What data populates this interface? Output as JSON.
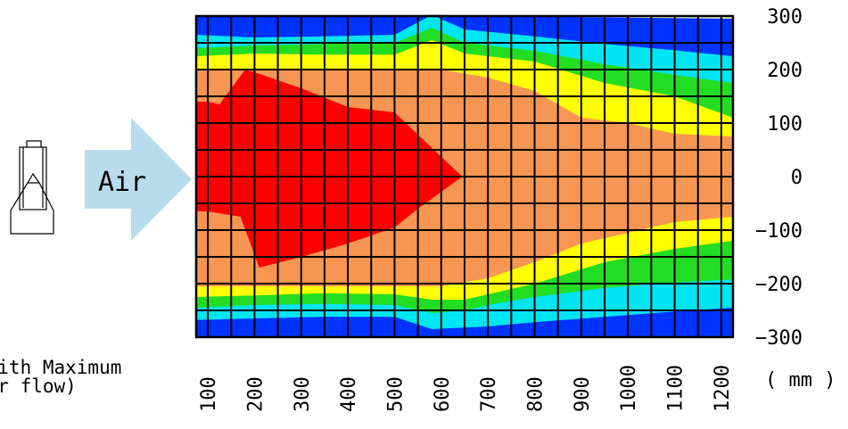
{
  "flow_label": "Air",
  "caption_lines": [
    "(with Maximum",
    "air flow)"
  ],
  "unit_label": "( mm )",
  "palette": {
    "band0": "#ff0000",
    "band1": "#f79552",
    "band2": "#ffff00",
    "band3": "#22dd22",
    "band4": "#00e5f2",
    "band5": "#0033ff",
    "background": "#f7f4c8",
    "arrow": "#b8dcec"
  },
  "chart_data": {
    "type": "heatmap",
    "description_type": "contour",
    "title": "",
    "xlabel": "",
    "ylabel": "",
    "unit": "( mm )",
    "xlim": [
      75,
      1225
    ],
    "ylim": [
      -300,
      300
    ],
    "x_ticks": [
      100,
      200,
      300,
      400,
      500,
      600,
      700,
      800,
      900,
      1000,
      1100,
      1200
    ],
    "y_ticks": [
      300,
      200,
      100,
      0,
      -100,
      -200,
      -300
    ],
    "grid": true,
    "bands": [
      {
        "name": "band5",
        "color": "#0033ff",
        "upper": [
          [
            75,
            300
          ],
          [
            500,
            300
          ],
          [
            580,
            302
          ],
          [
            760,
            300
          ],
          [
            900,
            298
          ],
          [
            1225,
            295
          ]
        ],
        "lower": [
          [
            75,
            -300
          ],
          [
            500,
            -300
          ],
          [
            600,
            -300
          ],
          [
            800,
            -300
          ],
          [
            900,
            -300
          ],
          [
            1225,
            -300
          ]
        ]
      },
      {
        "name": "band4",
        "color": "#00e5f2",
        "upper": [
          [
            75,
            265
          ],
          [
            200,
            260
          ],
          [
            350,
            262
          ],
          [
            500,
            265
          ],
          [
            580,
            302
          ],
          [
            650,
            275
          ],
          [
            800,
            262
          ],
          [
            950,
            248
          ],
          [
            1100,
            236
          ],
          [
            1225,
            225
          ]
        ],
        "lower": [
          [
            75,
            -268
          ],
          [
            200,
            -265
          ],
          [
            350,
            -262
          ],
          [
            500,
            -262
          ],
          [
            580,
            -285
          ],
          [
            650,
            -282
          ],
          [
            700,
            -280
          ],
          [
            800,
            -272
          ],
          [
            950,
            -262
          ],
          [
            1100,
            -252
          ],
          [
            1225,
            -245
          ]
        ]
      },
      {
        "name": "band3",
        "color": "#22dd22",
        "upper": [
          [
            75,
            240
          ],
          [
            200,
            245
          ],
          [
            350,
            248
          ],
          [
            500,
            250
          ],
          [
            580,
            278
          ],
          [
            650,
            250
          ],
          [
            800,
            235
          ],
          [
            950,
            210
          ],
          [
            1100,
            190
          ],
          [
            1225,
            175
          ]
        ],
        "lower": [
          [
            75,
            -245
          ],
          [
            200,
            -240
          ],
          [
            350,
            -238
          ],
          [
            500,
            -240
          ],
          [
            580,
            -255
          ],
          [
            650,
            -250
          ],
          [
            700,
            -240
          ],
          [
            800,
            -225
          ],
          [
            950,
            -208
          ],
          [
            1100,
            -198
          ],
          [
            1225,
            -192
          ]
        ]
      },
      {
        "name": "band2",
        "color": "#ffff00",
        "upper": [
          [
            75,
            225
          ],
          [
            200,
            230
          ],
          [
            350,
            228
          ],
          [
            500,
            228
          ],
          [
            580,
            255
          ],
          [
            650,
            230
          ],
          [
            800,
            215
          ],
          [
            950,
            175
          ],
          [
            1100,
            150
          ],
          [
            1225,
            110
          ]
        ],
        "lower": [
          [
            75,
            -225
          ],
          [
            200,
            -222
          ],
          [
            350,
            -218
          ],
          [
            500,
            -220
          ],
          [
            580,
            -230
          ],
          [
            650,
            -230
          ],
          [
            700,
            -220
          ],
          [
            800,
            -200
          ],
          [
            950,
            -160
          ],
          [
            1100,
            -135
          ],
          [
            1225,
            -120
          ]
        ]
      },
      {
        "name": "band1",
        "color": "#f79552",
        "upper": [
          [
            75,
            200
          ],
          [
            200,
            200
          ],
          [
            350,
            200
          ],
          [
            500,
            200
          ],
          [
            600,
            200
          ],
          [
            700,
            185
          ],
          [
            800,
            160
          ],
          [
            900,
            110
          ],
          [
            1000,
            100
          ],
          [
            1100,
            80
          ],
          [
            1225,
            75
          ]
        ],
        "lower": [
          [
            75,
            -205
          ],
          [
            200,
            -205
          ],
          [
            350,
            -205
          ],
          [
            500,
            -205
          ],
          [
            600,
            -205
          ],
          [
            700,
            -190
          ],
          [
            800,
            -160
          ],
          [
            900,
            -125
          ],
          [
            1000,
            -105
          ],
          [
            1100,
            -85
          ],
          [
            1225,
            -75
          ]
        ]
      },
      {
        "name": "band0",
        "color": "#ff0000",
        "upper": [
          [
            75,
            140
          ],
          [
            100,
            140
          ],
          [
            125,
            135
          ],
          [
            180,
            200
          ],
          [
            200,
            195
          ],
          [
            300,
            165
          ],
          [
            400,
            130
          ],
          [
            500,
            120
          ],
          [
            560,
            70
          ],
          [
            645,
            0
          ]
        ],
        "lower": [
          [
            75,
            -65
          ],
          [
            100,
            -65
          ],
          [
            170,
            -75
          ],
          [
            210,
            -170
          ],
          [
            300,
            -150
          ],
          [
            400,
            -125
          ],
          [
            500,
            -95
          ],
          [
            550,
            -60
          ],
          [
            645,
            0
          ]
        ]
      }
    ],
    "light_region_tips": [
      {
        "color": "#f79552",
        "x": 1150,
        "y": 0
      }
    ]
  }
}
